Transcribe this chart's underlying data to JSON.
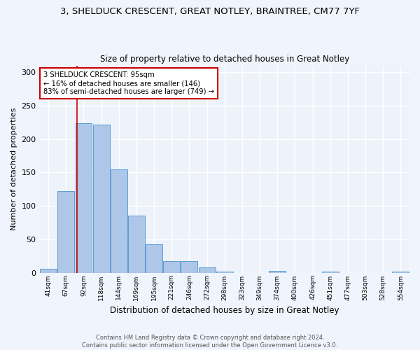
{
  "title_line1": "3, SHELDUCK CRESCENT, GREAT NOTLEY, BRAINTREE, CM77 7YF",
  "title_line2": "Size of property relative to detached houses in Great Notley",
  "xlabel": "Distribution of detached houses by size in Great Notley",
  "ylabel": "Number of detached properties",
  "categories": [
    "41sqm",
    "67sqm",
    "92sqm",
    "118sqm",
    "144sqm",
    "169sqm",
    "195sqm",
    "221sqm",
    "246sqm",
    "272sqm",
    "298sqm",
    "323sqm",
    "349sqm",
    "374sqm",
    "400sqm",
    "426sqm",
    "451sqm",
    "477sqm",
    "503sqm",
    "528sqm",
    "554sqm"
  ],
  "values": [
    6,
    122,
    224,
    222,
    155,
    85,
    42,
    17,
    17,
    8,
    2,
    0,
    0,
    3,
    0,
    0,
    2,
    0,
    0,
    0,
    2
  ],
  "bar_color": "#aec6e8",
  "bar_edge_color": "#5a9fd4",
  "background_color": "#eef3fb",
  "grid_color": "#ffffff",
  "annotation_label": "3 SHELDUCK CRESCENT: 95sqm",
  "annotation_line1": "← 16% of detached houses are smaller (146)",
  "annotation_line2": "83% of semi-detached houses are larger (749) →",
  "annotation_box_color": "#ffffff",
  "annotation_box_edge_color": "#cc0000",
  "red_line_color": "#cc0000",
  "ylim": [
    0,
    310
  ],
  "yticks": [
    0,
    50,
    100,
    150,
    200,
    250,
    300
  ],
  "fig_bg": "#f0f4fc",
  "footnote": "Contains HM Land Registry data © Crown copyright and database right 2024.\nContains public sector information licensed under the Open Government Licence v3.0."
}
